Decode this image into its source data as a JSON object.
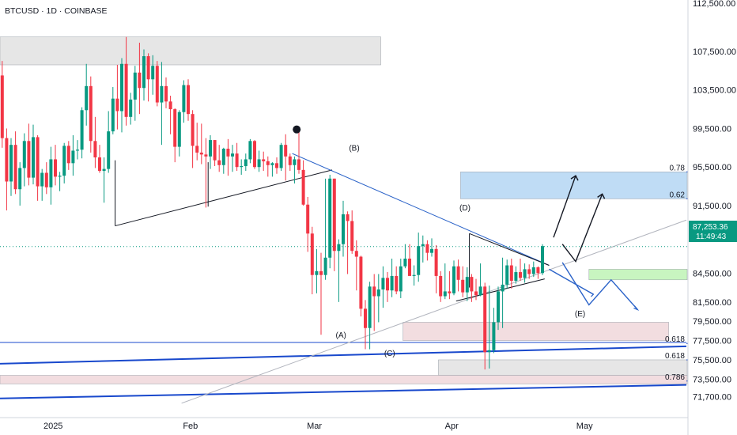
{
  "header": {
    "symbol_label": "BTCUSD · 1D · COINBASE"
  },
  "colors": {
    "up": "#089981",
    "down": "#f23645",
    "blue_line": "#1848cc",
    "trend_blue": "#2a62c8",
    "grey_line": "#b2b5be",
    "price_tag": "#089981",
    "zone_blue": "#bfdcf5",
    "zone_green": "#c8f5c0",
    "zone_pink": "#f2dde0",
    "zone_grey": "#e6e6e6"
  },
  "chart_data": {
    "type": "candlestick",
    "symbol": "BTCUSD",
    "interval": "1D",
    "exchange": "COINBASE",
    "ylim": [
      70000,
      112500
    ],
    "y_ticks": [
      {
        "value": 112500,
        "label": "112,500.00"
      },
      {
        "value": 107500,
        "label": "107,500.00"
      },
      {
        "value": 103500,
        "label": "103,500.00"
      },
      {
        "value": 99500,
        "label": "99,500.00"
      },
      {
        "value": 95500,
        "label": "95,500.00"
      },
      {
        "value": 91500,
        "label": "91,500.00"
      },
      {
        "value": 84500,
        "label": "84,500.00"
      },
      {
        "value": 81500,
        "label": "81,500.00"
      },
      {
        "value": 79500,
        "label": "79,500.00"
      },
      {
        "value": 77500,
        "label": "77,500.00"
      },
      {
        "value": 75500,
        "label": "75,500.00"
      },
      {
        "value": 73500,
        "label": "73,500.00"
      },
      {
        "value": 71700,
        "label": "71,700.00"
      }
    ],
    "x_labels": [
      {
        "index": 12,
        "label": "2025"
      },
      {
        "index": 43,
        "label": "Feb"
      },
      {
        "index": 71,
        "label": "Mar"
      },
      {
        "index": 102,
        "label": "Apr"
      },
      {
        "index": 132,
        "label": "May"
      }
    ],
    "last_price": {
      "value": 87253.36,
      "label": "87,253.36",
      "countdown": "11:49:43"
    },
    "candles": [
      [
        105000,
        106500,
        97500,
        98500
      ],
      [
        98500,
        99500,
        91000,
        94000
      ],
      [
        94000,
        98500,
        92500,
        97800
      ],
      [
        97800,
        99200,
        92700,
        93200
      ],
      [
        93200,
        96000,
        91500,
        95400
      ],
      [
        95400,
        99000,
        93500,
        98200
      ],
      [
        98200,
        100000,
        93600,
        94400
      ],
      [
        94400,
        99900,
        93700,
        98600
      ],
      [
        98600,
        98800,
        92000,
        93500
      ],
      [
        93500,
        95300,
        92000,
        94900
      ],
      [
        94900,
        96000,
        92700,
        93400
      ],
      [
        93400,
        97600,
        91600,
        96300
      ],
      [
        96300,
        97800,
        93600,
        94500
      ],
      [
        94500,
        95000,
        93000,
        94600
      ],
      [
        94600,
        98000,
        93800,
        97700
      ],
      [
        97700,
        98200,
        95200,
        95900
      ],
      [
        95900,
        98800,
        94600,
        97200
      ],
      [
        97200,
        98300,
        96300,
        97300
      ],
      [
        97300,
        101700,
        96400,
        101400
      ],
      [
        101400,
        106200,
        99800,
        103900
      ],
      [
        103900,
        104900,
        97000,
        98200
      ],
      [
        98200,
        100700,
        95400,
        96500
      ],
      [
        96500,
        97800,
        94900,
        95100
      ],
      [
        95100,
        96500,
        91800,
        95300
      ],
      [
        95300,
        101300,
        94900,
        99200
      ],
      [
        99200,
        103800,
        98900,
        102600
      ],
      [
        102600,
        106100,
        99400,
        101300
      ],
      [
        101300,
        106800,
        99100,
        106200
      ],
      [
        106200,
        109000,
        99800,
        100700
      ],
      [
        100700,
        103200,
        99900,
        102500
      ],
      [
        102500,
        106000,
        100300,
        105300
      ],
      [
        105300,
        108400,
        101000,
        103700
      ],
      [
        103700,
        107700,
        102400,
        107000
      ],
      [
        107000,
        107300,
        102300,
        104600
      ],
      [
        104600,
        107100,
        103000,
        106000
      ],
      [
        106000,
        106500,
        101800,
        102200
      ],
      [
        102200,
        106400,
        97800,
        103900
      ],
      [
        103900,
        104800,
        101600,
        102300
      ],
      [
        102300,
        102900,
        98900,
        101500
      ],
      [
        101500,
        101600,
        96000,
        97600
      ],
      [
        97600,
        101400,
        96600,
        101200
      ],
      [
        101200,
        104500,
        100100,
        104000
      ],
      [
        104000,
        104600,
        100300,
        101000
      ],
      [
        101000,
        101400,
        95400,
        97700
      ],
      [
        97700,
        100100,
        96200,
        97000
      ],
      [
        97000,
        100000,
        95800,
        96800
      ],
      [
        96800,
        98500,
        91300,
        96600
      ],
      [
        96600,
        98800,
        95300,
        98300
      ],
      [
        98300,
        98300,
        95600,
        96200
      ],
      [
        96200,
        97800,
        95000,
        95700
      ],
      [
        95700,
        97500,
        94800,
        97400
      ],
      [
        97400,
        98400,
        94600,
        96600
      ],
      [
        96600,
        97800,
        95000,
        96900
      ],
      [
        96900,
        98000,
        95100,
        95500
      ],
      [
        95500,
        96300,
        94700,
        95600
      ],
      [
        95600,
        96900,
        95100,
        96300
      ],
      [
        96300,
        98400,
        95900,
        98200
      ],
      [
        98200,
        98300,
        95300,
        95500
      ],
      [
        95500,
        97200,
        95000,
        96300
      ],
      [
        96300,
        97100,
        95100,
        96100
      ],
      [
        96100,
        96600,
        94500,
        95700
      ],
      [
        95700,
        96000,
        94500,
        95900
      ],
      [
        95900,
        96500,
        94800,
        95400
      ],
      [
        95400,
        98000,
        95100,
        97800
      ],
      [
        97800,
        98900,
        94100,
        96600
      ],
      [
        96600,
        96900,
        95100,
        95700
      ],
      [
        95700,
        96600,
        93800,
        96300
      ],
      [
        96300,
        99400,
        94800,
        95200
      ],
      [
        95200,
        96200,
        91500,
        91600
      ],
      [
        91600,
        92400,
        86700,
        88600
      ],
      [
        88600,
        89300,
        82300,
        84300
      ],
      [
        84300,
        87000,
        82400,
        84700
      ],
      [
        84700,
        86600,
        78100,
        84300
      ],
      [
        84300,
        94300,
        83800,
        86100
      ],
      [
        86100,
        94700,
        85000,
        94300
      ],
      [
        94300,
        94300,
        84700,
        86800
      ],
      [
        86800,
        88000,
        81500,
        87500
      ],
      [
        87500,
        92000,
        86200,
        90600
      ],
      [
        90600,
        90900,
        84400,
        89900
      ],
      [
        89900,
        91000,
        86500,
        86800
      ],
      [
        86800,
        87900,
        82700,
        86200
      ],
      [
        86200,
        86300,
        80000,
        80800
      ],
      [
        80800,
        81700,
        76600,
        78800
      ],
      [
        78800,
        83600,
        76600,
        83100
      ],
      [
        83100,
        84400,
        78500,
        82100
      ],
      [
        82100,
        84400,
        79400,
        82800
      ],
      [
        82800,
        85200,
        80900,
        84000
      ],
      [
        84000,
        84600,
        81500,
        82700
      ],
      [
        82700,
        86000,
        82000,
        84200
      ],
      [
        84200,
        85200,
        82300,
        82600
      ],
      [
        82600,
        86000,
        81900,
        85200
      ],
      [
        85200,
        87500,
        85000,
        86000
      ],
      [
        86000,
        87500,
        84300,
        84200
      ],
      [
        84200,
        85300,
        83200,
        84300
      ],
      [
        84300,
        88700,
        83600,
        87300
      ],
      [
        87300,
        88400,
        85600,
        87500
      ],
      [
        87500,
        87900,
        85800,
        86600
      ],
      [
        86600,
        88100,
        86200,
        87000
      ],
      [
        87000,
        87400,
        82400,
        84200
      ],
      [
        84200,
        84700,
        81500,
        82100
      ],
      [
        82100,
        85500,
        81800,
        82600
      ],
      [
        82600,
        84700,
        81800,
        82400
      ],
      [
        82400,
        85800,
        82200,
        85200
      ],
      [
        85200,
        85900,
        82600,
        83800
      ],
      [
        83800,
        85200,
        82000,
        82500
      ],
      [
        82500,
        85100,
        81600,
        84100
      ],
      [
        84100,
        84400,
        81500,
        82600
      ],
      [
        82600,
        83900,
        81700,
        82200
      ],
      [
        82200,
        85500,
        82100,
        83100
      ],
      [
        83100,
        83500,
        74500,
        76300
      ],
      [
        76300,
        83200,
        74600,
        76500
      ],
      [
        76500,
        80900,
        76200,
        79400
      ],
      [
        79400,
        83100,
        78600,
        82600
      ],
      [
        82600,
        86100,
        78800,
        83300
      ],
      [
        83300,
        85900,
        82900,
        85300
      ],
      [
        85300,
        86000,
        82900,
        83700
      ],
      [
        83700,
        85200,
        83400,
        84600
      ],
      [
        84600,
        86000,
        83700,
        84000
      ],
      [
        84000,
        85500,
        83500,
        84900
      ],
      [
        84900,
        85400,
        83900,
        84400
      ],
      [
        84400,
        85700,
        84100,
        85100
      ],
      [
        85100,
        85200,
        83900,
        84500
      ],
      [
        84500,
        87500,
        84300,
        87300
      ]
    ],
    "annotations": [
      {
        "text": "(A)",
        "index": 77,
        "price": 77800
      },
      {
        "text": "(B)",
        "index": 80,
        "price": 97200
      },
      {
        "text": "(C)",
        "index": 88,
        "price": 75900
      },
      {
        "text": "(D)",
        "index": 105,
        "price": 91000
      },
      {
        "text": "(E)",
        "index": 131,
        "price": 80000
      }
    ],
    "fib_levels": [
      {
        "label": "0.78",
        "price": 95000
      },
      {
        "label": "0.62",
        "price": 92200
      },
      {
        "label": "0.618",
        "price": 77200
      },
      {
        "label": "0.618",
        "price": 75500
      },
      {
        "label": "0.786",
        "price": 73300
      }
    ],
    "zones": [
      {
        "name": "top-grey-zone",
        "from_index": 0,
        "to_index": 86,
        "low": 106100,
        "high": 109000,
        "color": "#e6e6e6"
      },
      {
        "name": "blue-target-zone",
        "from_index": 104,
        "to_index": 163,
        "low": 92200,
        "high": 95000,
        "color": "#bfdcf5"
      },
      {
        "name": "green-zone",
        "from_index": 133,
        "to_index": 167,
        "low": 83800,
        "high": 84900,
        "color": "#c8f5c0"
      },
      {
        "name": "pink-zone",
        "from_index": 91,
        "to_index": 151,
        "low": 77500,
        "high": 79400,
        "color": "#f2dde0"
      },
      {
        "name": "grey-zone",
        "from_index": 99,
        "to_index": 163,
        "low": 73900,
        "high": 75500,
        "color": "#e6e6e6"
      },
      {
        "name": "pink-band",
        "from_index": 0,
        "to_index": 163,
        "low": 73000,
        "high": 73900,
        "color": "#f2dde0"
      }
    ]
  }
}
